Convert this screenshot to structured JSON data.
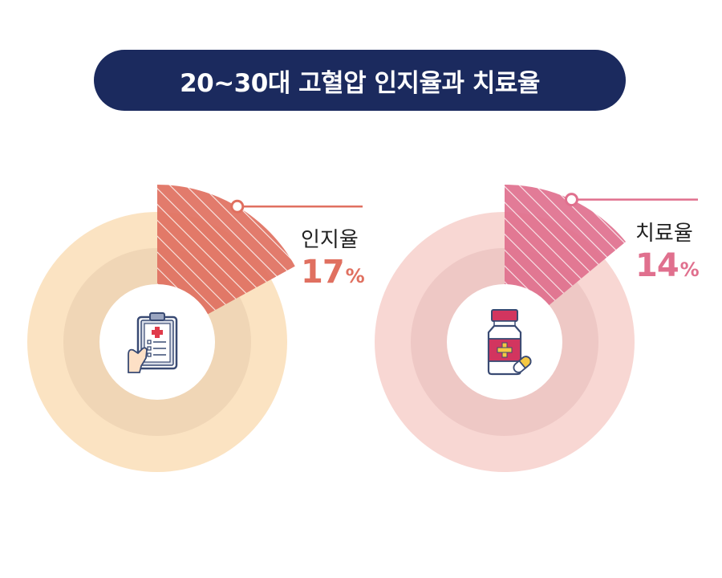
{
  "title": "20~30대 고혈압 인지율과 치료율",
  "colors": {
    "title_bg": "#1b2a5e",
    "awareness_accent": "#e07060",
    "awareness_ring_outer": "#fbe3c2",
    "awareness_ring_inner": "#f0d6b6",
    "treatment_accent": "#e0708e",
    "treatment_ring_outer": "#f8d7d3",
    "treatment_ring_inner": "#eec8c5"
  },
  "chart_data": [
    {
      "type": "pie",
      "label": "인지율",
      "value": 17,
      "unit": "%",
      "icon": "clipboard-icon"
    },
    {
      "type": "pie",
      "label": "치료율",
      "value": 14,
      "unit": "%",
      "icon": "medicine-bottle-icon"
    }
  ]
}
